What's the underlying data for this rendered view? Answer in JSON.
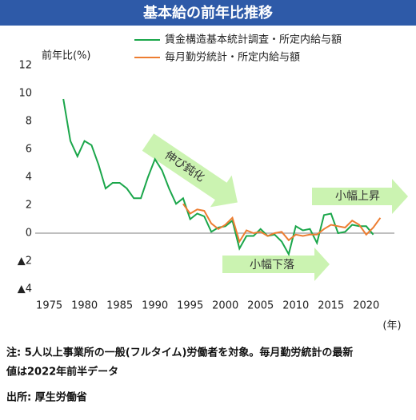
{
  "chart_data": {
    "type": "line",
    "title": "基本給の前年比推移",
    "y_label": "前年比(%)",
    "x_label": "(年)",
    "xlim": [
      1973,
      2024
    ],
    "xticks": [
      1975,
      1980,
      1985,
      1990,
      1995,
      2000,
      2005,
      2010,
      2015,
      2020
    ],
    "ylim": [
      -4,
      12
    ],
    "yticks": [
      {
        "value": -4,
        "label": "▲4"
      },
      {
        "value": -2,
        "label": "▲2"
      },
      0,
      2,
      4,
      6,
      8,
      10,
      12
    ],
    "grid": false,
    "series": [
      {
        "name": "賃金構造基本統計調査・所定内給与額",
        "color": "#1aa64a",
        "x": [
          1977,
          1978,
          1979,
          1980,
          1981,
          1982,
          1983,
          1984,
          1985,
          1986,
          1987,
          1988,
          1989,
          1990,
          1991,
          1992,
          1993,
          1994,
          1995,
          1996,
          1997,
          1998,
          1999,
          2000,
          2001,
          2002,
          2003,
          2004,
          2005,
          2006,
          2007,
          2008,
          2009,
          2010,
          2011,
          2012,
          2013,
          2014,
          2015,
          2016,
          2017,
          2018,
          2019,
          2020,
          2021
        ],
        "values": [
          9.6,
          6.6,
          5.5,
          6.6,
          6.3,
          4.9,
          3.2,
          3.6,
          3.6,
          3.2,
          2.5,
          2.5,
          4.0,
          5.3,
          4.5,
          3.2,
          2.1,
          2.5,
          1.0,
          1.4,
          1.2,
          0.1,
          0.4,
          0.5,
          0.9,
          -1.1,
          -0.2,
          -0.2,
          0.3,
          -0.2,
          -0.1,
          -0.6,
          -1.5,
          0.5,
          0.2,
          0.3,
          -0.7,
          1.3,
          1.4,
          0.0,
          0.1,
          0.6,
          0.5,
          0.5,
          -0.1
        ]
      },
      {
        "name": "毎月勤労統計・所定内給与額",
        "color": "#ed7d31",
        "x": [
          1994,
          1995,
          1996,
          1997,
          1998,
          1999,
          2000,
          2001,
          2002,
          2003,
          2004,
          2005,
          2006,
          2007,
          2008,
          2009,
          2010,
          2011,
          2012,
          2013,
          2014,
          2015,
          2016,
          2017,
          2018,
          2019,
          2020,
          2021,
          2022
        ],
        "values": [
          2.1,
          1.4,
          1.7,
          1.6,
          0.7,
          0.3,
          0.6,
          1.1,
          -0.6,
          0.2,
          0.0,
          0.1,
          -0.2,
          0.0,
          0.1,
          -0.5,
          -0.1,
          -0.2,
          -0.1,
          -0.1,
          0.3,
          0.6,
          0.5,
          0.4,
          0.9,
          0.6,
          -0.1,
          0.4,
          1.1
        ]
      }
    ],
    "annotations": [
      "伸び鈍化",
      "小幅下落",
      "小幅上昇"
    ],
    "note": [
      "注: 5人以上事業所の一般(フルタイム)労働者を対象。毎月勤労統計の最新",
      "値は2022年前半データ"
    ],
    "source": "出所: 厚生労働省"
  }
}
